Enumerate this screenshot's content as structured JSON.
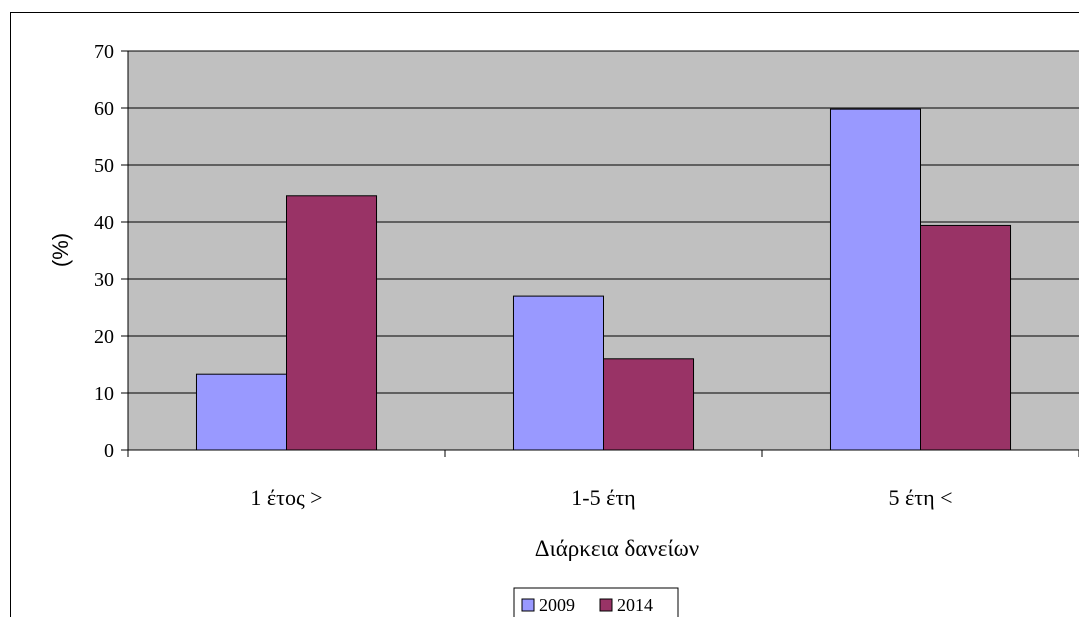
{
  "chart_data": {
    "type": "bar",
    "categories": [
      "1 έτος >",
      "1-5 έτη",
      "5 έτη <"
    ],
    "series": [
      {
        "name": "2009",
        "values": [
          13.3,
          27.0,
          59.8
        ],
        "color": "#9999ff"
      },
      {
        "name": "2014",
        "values": [
          44.6,
          16.0,
          39.4
        ],
        "color": "#993366"
      }
    ],
    "xlabel": "Διάρκεια δανείων",
    "ylabel": "(%)",
    "ylim": [
      0,
      70
    ],
    "yticks": [
      0,
      10,
      20,
      30,
      40,
      50,
      60,
      70
    ],
    "grid": true,
    "legend": "bottom",
    "plot_background": "#c0c0c0"
  }
}
